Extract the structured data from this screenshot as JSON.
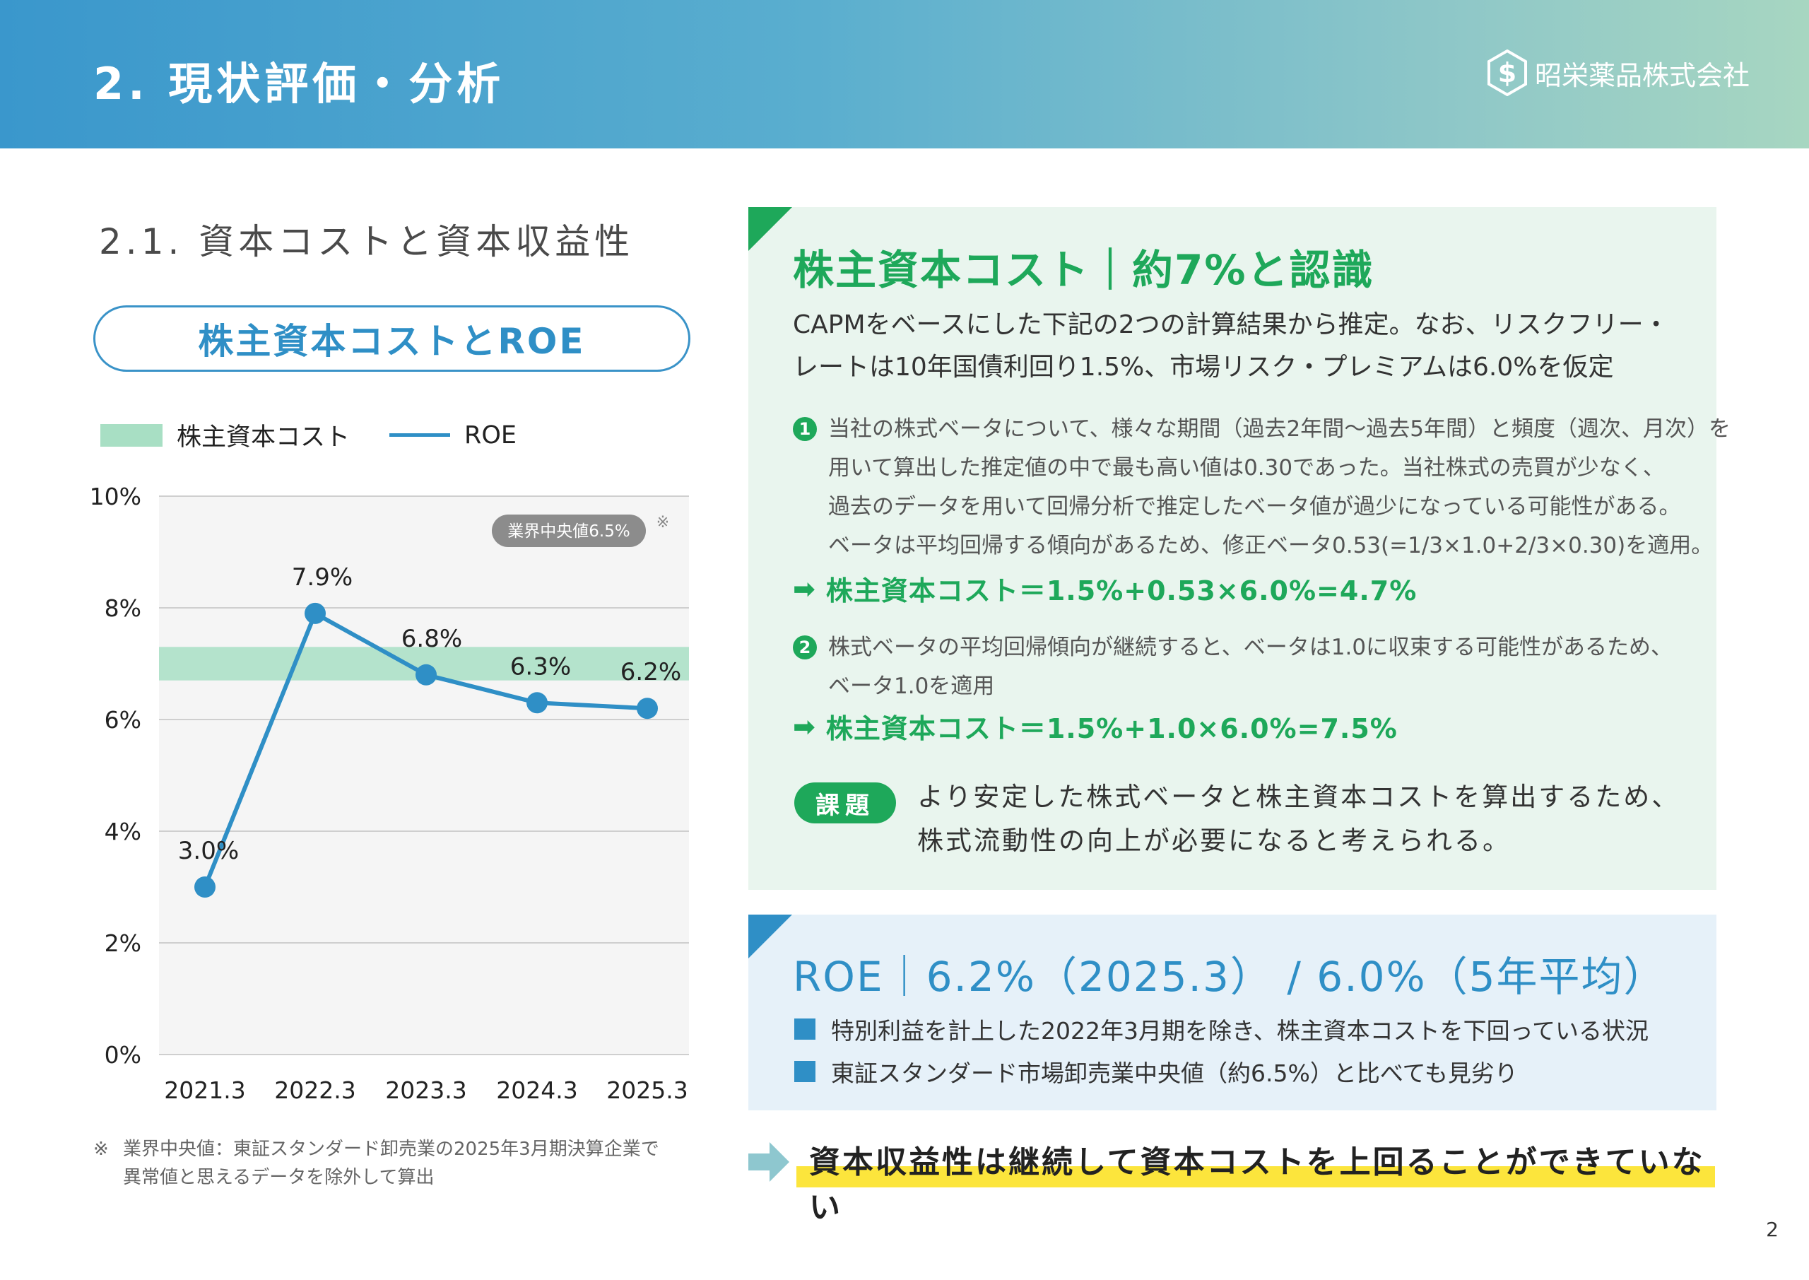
{
  "header": {
    "title": "2. 現状評価・分析",
    "brand": "昭栄薬品株式会社"
  },
  "section": {
    "title": "2.1. 資本コストと資本収益性"
  },
  "chart_panel": {
    "title": "株主資本コストとROE",
    "legend": {
      "band_label": "株主資本コスト",
      "line_label": "ROE"
    },
    "industry_badge": "業界中央値6.5%",
    "note_mark": "※"
  },
  "chart_data": {
    "type": "line",
    "categories": [
      "2021.3",
      "2022.3",
      "2023.3",
      "2024.3",
      "2025.3"
    ],
    "series": [
      {
        "name": "ROE",
        "values": [
          3.0,
          7.9,
          6.8,
          6.3,
          6.2
        ],
        "labels": [
          "3.0%",
          "7.9%",
          "6.8%",
          "6.3%",
          "6.2%"
        ],
        "color": "#2f8fc6"
      }
    ],
    "band": {
      "name": "株主資本コスト",
      "from": 6.7,
      "to": 7.3,
      "color": "#a8dfc4"
    },
    "yticks": [
      "0%",
      "2%",
      "4%",
      "6%",
      "8%",
      "10%"
    ],
    "ylim": [
      0,
      10
    ],
    "grid": true,
    "legend_position": "top-left"
  },
  "footnote": {
    "mark": "※",
    "line1": "業界中央値：東証スタンダード卸売業の2025年3月期決算企業で",
    "line2": "異常値と思えるデータを除外して算出"
  },
  "cost_panel": {
    "heading": "株主資本コスト｜約7%と認識",
    "body1": "CAPMをベースにした下記の2つの計算結果から推定。なお、リスクフリー・",
    "body2": "レートは10年国債利回り1.5%、市場リスク・プレミアムは6.0%を仮定",
    "item1": {
      "num": "1",
      "l1": "当社の株式ベータについて、様々な期間（過去2年間〜過去5年間）と頻度（週次、月次）を",
      "l2": "用いて算出した推定値の中で最も高い値は0.30であった。当社株式の売買が少なく、",
      "l3": "過去のデータを用いて回帰分析で推定したベータ値が過少になっている可能性がある。",
      "l4": "ベータは平均回帰する傾向があるため、修正ベータ0.53(=1/3×1.0+2/3×0.30)を適用。",
      "formula": "株主資本コスト＝1.5%+0.53×6.0%=4.7%"
    },
    "item2": {
      "num": "2",
      "l1": "株式ベータの平均回帰傾向が継続すると、ベータは1.0に収束する可能性があるため、",
      "l2": "ベータ1.0を適用",
      "formula": "株主資本コスト＝1.5%+1.0×6.0%=7.5%"
    },
    "issue_label": "課題",
    "issue_l1": "より安定した株式ベータと株主資本コストを算出するため、",
    "issue_l2": "株式流動性の向上が必要になると考えられる。"
  },
  "roe_panel": {
    "heading": "ROE｜6.2%（2025.3） / 6.0%（5年平均）",
    "bullet1": "特別利益を計上した2022年3月期を除き、株主資本コストを下回っている状況",
    "bullet2": "東証スタンダード市場卸売業中央値（約6.5%）と比べても見劣り"
  },
  "conclusion": "資本収益性は継続して資本コストを上回ることができていない",
  "page": "2"
}
